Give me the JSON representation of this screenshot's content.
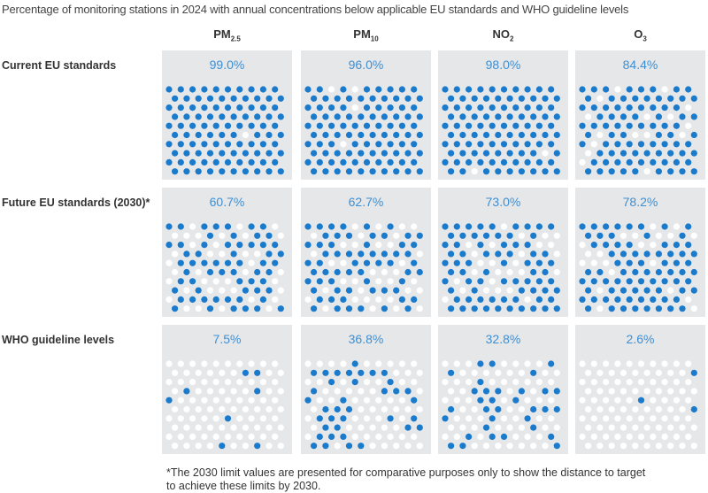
{
  "chart_data": {
    "type": "dot-matrix",
    "title": "Percentage of monitoring stations in 2024 with annual concentrations below applicable EU standards and WHO guideline levels",
    "columns": [
      {
        "base": "PM",
        "sub": "2.5"
      },
      {
        "base": "PM",
        "sub": "10"
      },
      {
        "base": "NO",
        "sub": "2"
      },
      {
        "base": "O",
        "sub": "3"
      }
    ],
    "rows": [
      {
        "label": "Current EU standards",
        "values": [
          99.0,
          96.0,
          98.0,
          84.4
        ],
        "labels": [
          "99.0%",
          "96.0%",
          "98.0%",
          "84.4%"
        ]
      },
      {
        "label": "Future EU standards (2030)*",
        "values": [
          60.7,
          62.7,
          73.0,
          78.2
        ],
        "labels": [
          "60.7%",
          "62.7%",
          "73.0%",
          "78.2%"
        ]
      },
      {
        "label": "WHO guideline levels",
        "values": [
          7.5,
          36.8,
          32.8,
          2.6
        ],
        "labels": [
          "7.5%",
          "36.8%",
          "32.8%",
          "2.6%"
        ]
      }
    ],
    "dots_per_panel": 100,
    "colors": {
      "filled": "#1a7acc",
      "empty": "#ffffff",
      "panel": "#e6e7e9",
      "value_text": "#3d8fd4"
    },
    "footnote": [
      "*The 2030 limit values are presented for comparative purposes only to show the distance to target",
      "to achieve these limits by 2030."
    ]
  }
}
